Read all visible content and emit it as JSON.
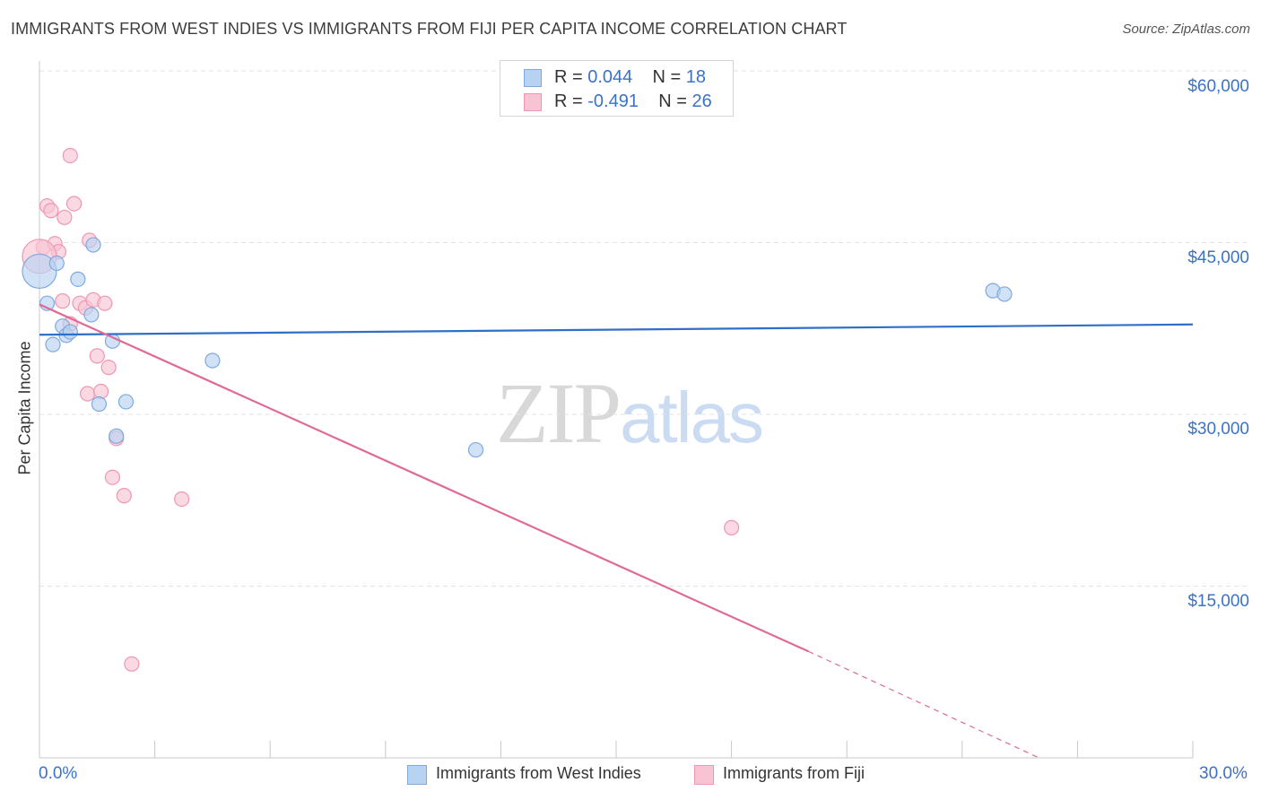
{
  "title": "IMMIGRANTS FROM WEST INDIES VS IMMIGRANTS FROM FIJI PER CAPITA INCOME CORRELATION CHART",
  "source": "Source: ZipAtlas.com",
  "watermark": {
    "zip": "ZIP",
    "atlas": "atlas"
  },
  "colors": {
    "blue_fill": "#b8d2f2",
    "blue_stroke": "#7ea9de",
    "blue_line": "#2f6fc7",
    "pink_fill": "#f8c4d4",
    "pink_stroke": "#ee97b3",
    "pink_line": "#e06a96",
    "grid": "#e3e3e3",
    "tick_text": "#3a72c8"
  },
  "legend_top": {
    "rows": [
      {
        "r_label": "R =",
        "r_value": "0.044",
        "n_label": "N =",
        "n_value": "18"
      },
      {
        "r_label": "R =",
        "r_value": "-0.491",
        "n_label": "N =",
        "n_value": "26"
      }
    ]
  },
  "legend_bottom": {
    "series_1": "Immigrants from West Indies",
    "series_2": "Immigrants from Fiji"
  },
  "axes": {
    "ylabel": "Per Capita Income",
    "y_ticks": [
      "$60,000",
      "$45,000",
      "$30,000",
      "$15,000"
    ],
    "x_min_label": "0.0%",
    "x_max_label": "30.0%"
  },
  "chart_data": {
    "type": "scatter",
    "title": "IMMIGRANTS FROM WEST INDIES VS IMMIGRANTS FROM FIJI PER CAPITA INCOME CORRELATION CHART",
    "xlabel": "",
    "ylabel": "Per Capita Income",
    "xlim": [
      0,
      30
    ],
    "ylim": [
      0,
      63000
    ],
    "y_ticks": [
      15000,
      30000,
      45000,
      60000
    ],
    "x_unit": "%",
    "grid": true,
    "series": [
      {
        "name": "Immigrants from West Indies",
        "R": 0.044,
        "N": 18,
        "points": [
          {
            "x": 0.0,
            "y": 42500,
            "size": "large"
          },
          {
            "x": 0.2,
            "y": 39700
          },
          {
            "x": 0.35,
            "y": 36100
          },
          {
            "x": 0.45,
            "y": 43200
          },
          {
            "x": 0.6,
            "y": 37700
          },
          {
            "x": 0.7,
            "y": 36900
          },
          {
            "x": 0.8,
            "y": 37200
          },
          {
            "x": 1.0,
            "y": 41800
          },
          {
            "x": 1.35,
            "y": 38700
          },
          {
            "x": 1.4,
            "y": 44800
          },
          {
            "x": 1.55,
            "y": 30900
          },
          {
            "x": 1.9,
            "y": 36400
          },
          {
            "x": 2.0,
            "y": 28100
          },
          {
            "x": 2.25,
            "y": 31100
          },
          {
            "x": 4.5,
            "y": 34700
          },
          {
            "x": 11.35,
            "y": 26900
          },
          {
            "x": 24.8,
            "y": 40800
          },
          {
            "x": 25.1,
            "y": 40500
          }
        ],
        "trend": {
          "x_start": 0,
          "y_start": 36950,
          "x_end": 30,
          "y_end": 37850
        }
      },
      {
        "name": "Immigrants from Fiji",
        "R": -0.491,
        "N": 26,
        "points": [
          {
            "x": 0.1,
            "y": 44600
          },
          {
            "x": 0.2,
            "y": 48200
          },
          {
            "x": 0.3,
            "y": 47800
          },
          {
            "x": 0.4,
            "y": 44900
          },
          {
            "x": 0.5,
            "y": 44200
          },
          {
            "x": 0.6,
            "y": 39900
          },
          {
            "x": 0.65,
            "y": 47200
          },
          {
            "x": 0.8,
            "y": 37900
          },
          {
            "x": 0.8,
            "y": 52600
          },
          {
            "x": 0.9,
            "y": 48400
          },
          {
            "x": 1.05,
            "y": 39700
          },
          {
            "x": 1.2,
            "y": 39300
          },
          {
            "x": 1.25,
            "y": 31800
          },
          {
            "x": 1.3,
            "y": 45200
          },
          {
            "x": 1.4,
            "y": 40000
          },
          {
            "x": 1.5,
            "y": 35100
          },
          {
            "x": 1.6,
            "y": 32000
          },
          {
            "x": 1.7,
            "y": 39700
          },
          {
            "x": 1.8,
            "y": 34100
          },
          {
            "x": 1.9,
            "y": 24500
          },
          {
            "x": 2.0,
            "y": 27900
          },
          {
            "x": 2.2,
            "y": 22900
          },
          {
            "x": 2.4,
            "y": 8200
          },
          {
            "x": 3.7,
            "y": 22600
          },
          {
            "x": 18.0,
            "y": 20100
          },
          {
            "x": 0.0,
            "y": 43800,
            "size": "large"
          }
        ],
        "trend": {
          "x_start": 0,
          "y_start": 39600,
          "x_end": 20.0,
          "y_end": 9300,
          "dashed_to_x": 26.0,
          "dashed_to_y": 0
        }
      }
    ]
  }
}
